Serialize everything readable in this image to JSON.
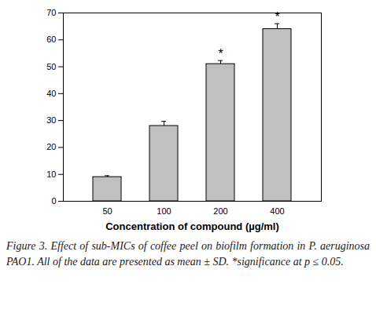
{
  "chart_data": {
    "type": "bar",
    "categories": [
      "50",
      "100",
      "200",
      "400"
    ],
    "values": [
      9,
      28,
      51,
      64
    ],
    "errors": [
      0.5,
      1.7,
      1.3,
      2.0
    ],
    "color": "#c0c0c0",
    "ylim": [
      0,
      70
    ],
    "yticks": [
      0,
      10,
      20,
      30,
      40,
      50,
      60,
      70
    ],
    "xlabel": "Concentration of compound (µg/ml)",
    "annotations": [
      {
        "category": "200",
        "text": "*"
      },
      {
        "category": "400",
        "text": "*"
      }
    ],
    "caption": "Figure 3. Effect of sub-MICs of coffee peel on biofilm formation in P. aeruginosa PAO1. All of the data are presented as mean ± SD. *significance at p ≤ 0.05."
  }
}
